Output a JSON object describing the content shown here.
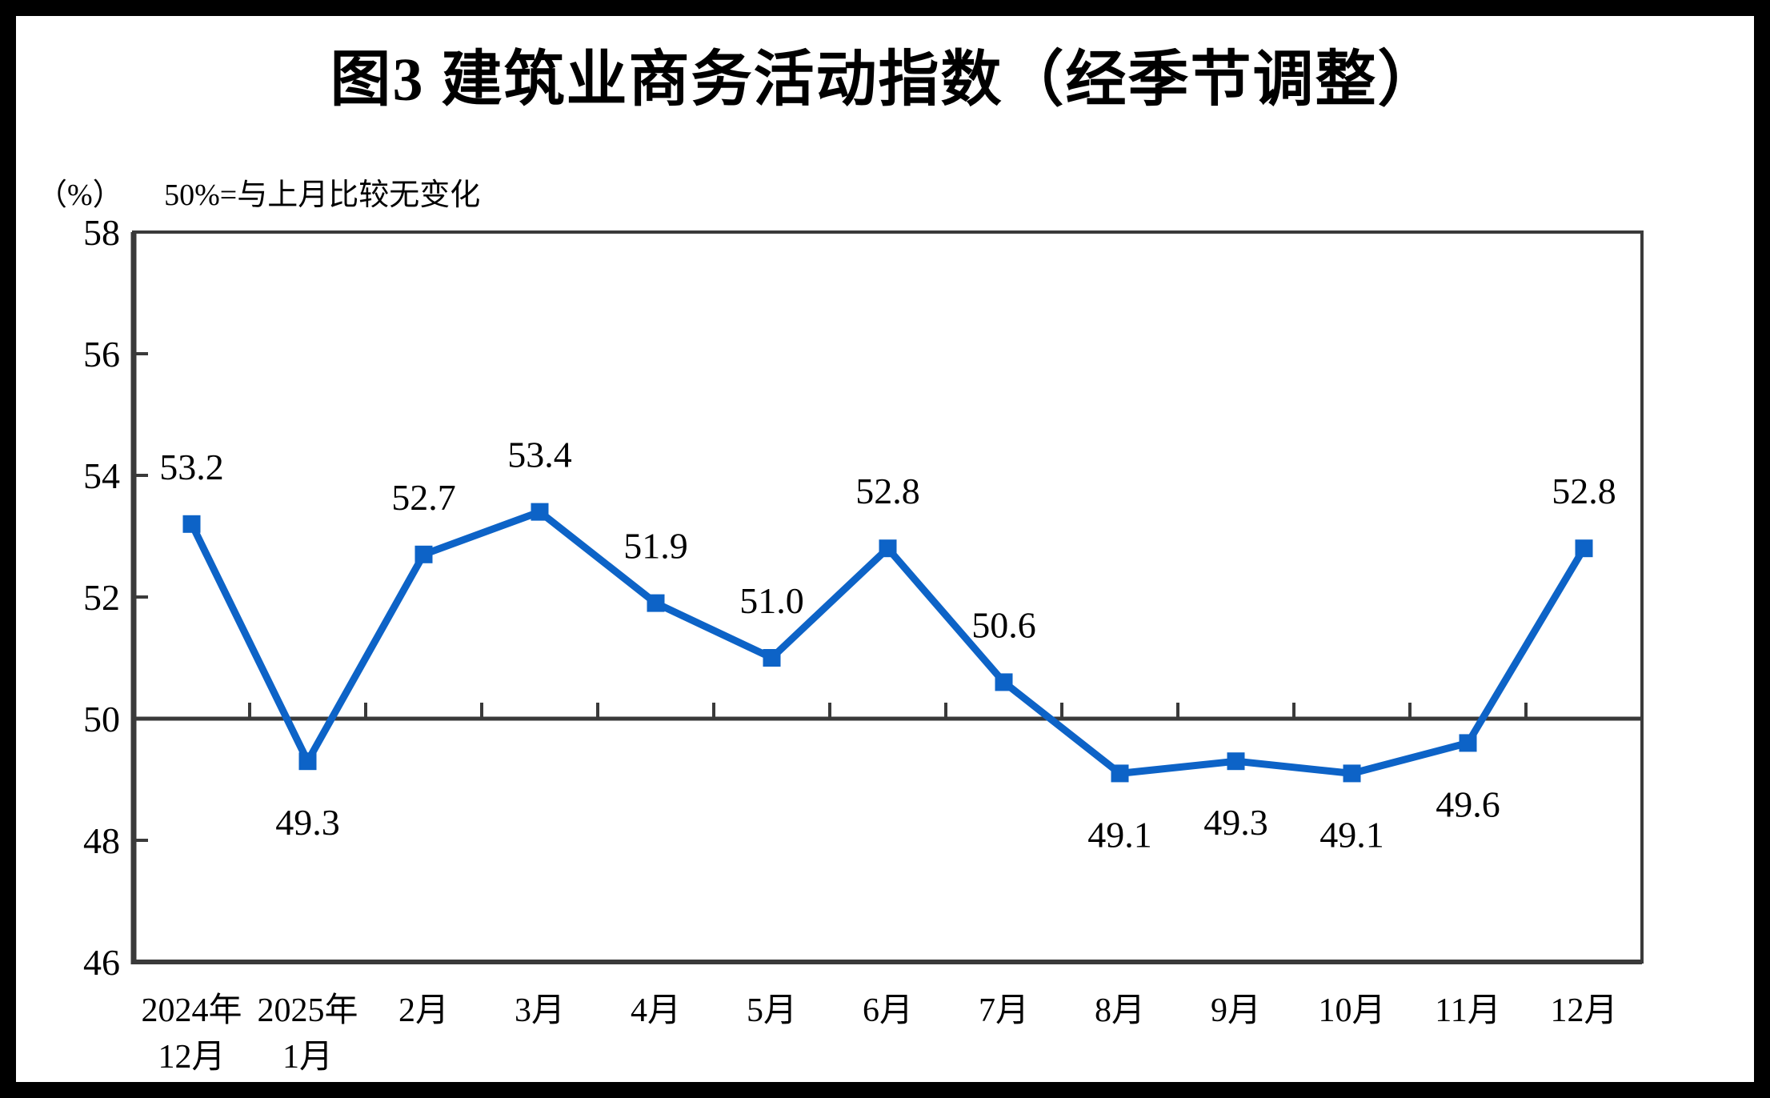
{
  "title": "图3  建筑业商务活动指数（经季节调整）",
  "subtitle": {
    "unit": "（%）",
    "note": "50%=与上月比较无变化"
  },
  "chart_data": {
    "type": "line",
    "title": "图3  建筑业商务活动指数（经季节调整）",
    "unit_label": "（%）",
    "reference_note": "50%=与上月比较无变化",
    "categories": [
      [
        "2024年",
        "12月"
      ],
      [
        "2025年",
        "1月"
      ],
      [
        "2月"
      ],
      [
        "3月"
      ],
      [
        "4月"
      ],
      [
        "5月"
      ],
      [
        "6月"
      ],
      [
        "7月"
      ],
      [
        "8月"
      ],
      [
        "9月"
      ],
      [
        "10月"
      ],
      [
        "11月"
      ],
      [
        "12月"
      ]
    ],
    "series": [
      {
        "name": "建筑业商务活动指数",
        "values": [
          53.2,
          49.3,
          52.7,
          53.4,
          51.9,
          51.0,
          52.8,
          50.6,
          49.1,
          49.3,
          49.1,
          49.6,
          52.8
        ],
        "color": "#0D63C7",
        "marker": "square"
      }
    ],
    "data_label_positions": [
      "above",
      "below",
      "above",
      "above",
      "above",
      "above",
      "above",
      "above",
      "below",
      "below",
      "below",
      "below",
      "above"
    ],
    "ylim": [
      46,
      58
    ],
    "yticks": [
      46,
      48,
      50,
      52,
      54,
      56,
      58
    ],
    "reference_line": 50,
    "grid": false,
    "legend_position": "none",
    "axis_color": "#3A3A3A",
    "text_color": "#000000",
    "background_color": "#FFFFFF",
    "frame_color": "#000000"
  }
}
